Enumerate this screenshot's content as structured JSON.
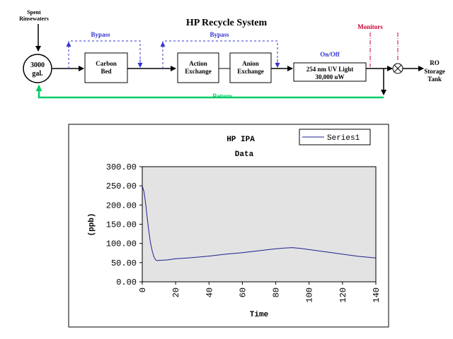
{
  "diagram": {
    "title": "HP Recycle System",
    "source_label_line1": "Spent",
    "source_label_line2": "Rinsewaters",
    "tank_label_line1": "3000",
    "tank_label_line2": "gal.",
    "carbon_bed_line1": "Carbon",
    "carbon_bed_line2": "Bed",
    "action_exchange_line1": "Action",
    "action_exchange_line2": "Exchange",
    "anion_exchange_line1": "Anion",
    "anion_exchange_line2": "Exchange",
    "uv_light_line1": "254 nm UV Light",
    "uv_light_line2": "30,000 uW",
    "bypass_label_1": "Bypass",
    "bypass_label_2": "Bypass",
    "onoff_label": "On/Off",
    "monitors_label": "Monitors",
    "ro_tank_line1": "RO",
    "ro_tank_line2": "Storage",
    "ro_tank_line3": "Tank",
    "return_label": "Return",
    "colors": {
      "bypass": "#3333cc",
      "monitors": "#cc0033",
      "return": "#00cc66",
      "onoff": "#3333cc"
    }
  },
  "chart_data": {
    "type": "line",
    "title_line1": "HP  IPA",
    "title_line2": "Data",
    "xlabel": "Time",
    "ylabel": "(ppb)",
    "xlim": [
      0,
      140
    ],
    "ylim": [
      0,
      300
    ],
    "xticks": [
      "0",
      "20",
      "40",
      "60",
      "80",
      "100",
      "120",
      "140"
    ],
    "yticks": [
      "0.00",
      "50.00",
      "100.00",
      "150.00",
      "200.00",
      "250.00",
      "300.00"
    ],
    "grid": false,
    "legend_position": "top-right",
    "plot_background": "#e3e3e3",
    "series": [
      {
        "name": "Series1",
        "color": "#1f1f8f",
        "x": [
          0,
          1,
          2,
          3,
          4,
          5,
          6,
          7,
          8,
          9,
          10,
          15,
          20,
          30,
          40,
          50,
          60,
          70,
          80,
          85,
          90,
          95,
          100,
          110,
          120,
          130,
          140
        ],
        "y": [
          250,
          235,
          205,
          165,
          130,
          100,
          80,
          65,
          57,
          55,
          56,
          57,
          60,
          63,
          67,
          72,
          76,
          81,
          86,
          88,
          89,
          87,
          84,
          78,
          72,
          66,
          62
        ]
      }
    ]
  }
}
